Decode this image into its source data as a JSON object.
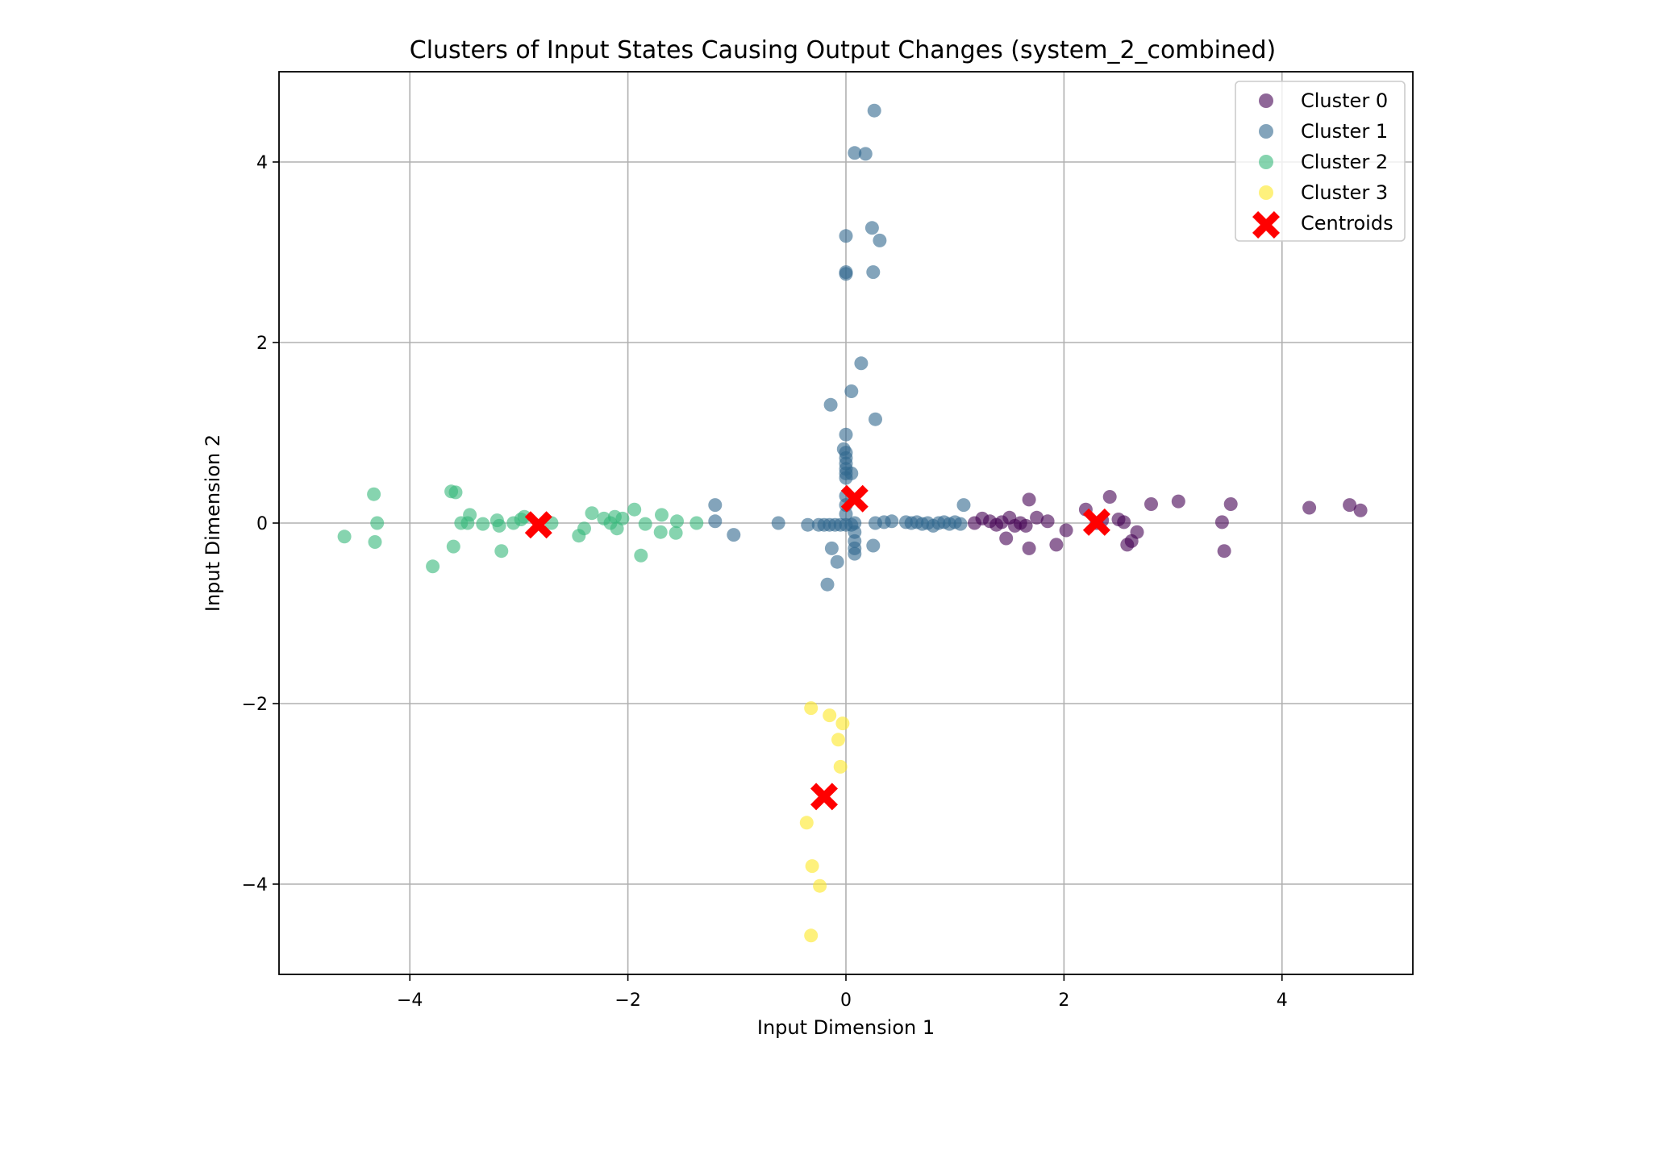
{
  "chart_data": {
    "type": "scatter",
    "title": "Clusters of Input States Causing Output Changes (system_2_combined)",
    "xlabel": "Input Dimension 1",
    "ylabel": "Input Dimension 2",
    "xlim": [
      -5.2,
      5.2
    ],
    "ylim": [
      -5.0,
      5.0
    ],
    "xticks": [
      -4,
      -2,
      0,
      2,
      4
    ],
    "yticks": [
      -4,
      -2,
      0,
      2,
      4
    ],
    "xtick_labels": [
      "−4",
      "−2",
      "0",
      "2",
      "4"
    ],
    "ytick_labels": [
      "−4",
      "−2",
      "0",
      "2",
      "4"
    ],
    "grid": true,
    "legend_position": "top-right",
    "series": [
      {
        "name": "Cluster 0",
        "color": "#440154",
        "marker": "circle",
        "points": [
          [
            1.18,
            0.0
          ],
          [
            1.25,
            0.05
          ],
          [
            1.32,
            0.02
          ],
          [
            1.38,
            -0.02
          ],
          [
            1.43,
            0.01
          ],
          [
            1.47,
            -0.17
          ],
          [
            1.5,
            0.06
          ],
          [
            1.55,
            -0.03
          ],
          [
            1.6,
            0.0
          ],
          [
            1.65,
            -0.03
          ],
          [
            1.68,
            0.26
          ],
          [
            1.68,
            -0.28
          ],
          [
            1.75,
            0.06
          ],
          [
            1.85,
            0.02
          ],
          [
            1.93,
            -0.24
          ],
          [
            2.02,
            -0.08
          ],
          [
            2.2,
            0.15
          ],
          [
            2.3,
            0.0
          ],
          [
            2.35,
            0.03
          ],
          [
            2.42,
            0.29
          ],
          [
            2.5,
            0.04
          ],
          [
            2.55,
            0.01
          ],
          [
            2.58,
            -0.24
          ],
          [
            2.62,
            -0.2
          ],
          [
            2.67,
            -0.1
          ],
          [
            2.8,
            0.21
          ],
          [
            3.05,
            0.24
          ],
          [
            3.45,
            0.01
          ],
          [
            3.47,
            -0.31
          ],
          [
            3.53,
            0.21
          ],
          [
            4.25,
            0.17
          ],
          [
            4.62,
            0.2
          ],
          [
            4.72,
            0.14
          ]
        ]
      },
      {
        "name": "Cluster 1",
        "color": "#31688e",
        "marker": "circle",
        "points": [
          [
            0.26,
            4.57
          ],
          [
            0.08,
            4.1
          ],
          [
            0.18,
            4.09
          ],
          [
            0.24,
            3.27
          ],
          [
            0.0,
            3.18
          ],
          [
            0.31,
            3.13
          ],
          [
            0.25,
            2.78
          ],
          [
            0.0,
            2.78
          ],
          [
            0.0,
            2.76
          ],
          [
            0.14,
            1.77
          ],
          [
            0.05,
            1.46
          ],
          [
            -0.14,
            1.31
          ],
          [
            0.27,
            1.15
          ],
          [
            0.0,
            0.98
          ],
          [
            -0.02,
            0.82
          ],
          [
            0.0,
            0.78
          ],
          [
            0.0,
            0.72
          ],
          [
            0.0,
            0.66
          ],
          [
            0.0,
            0.6
          ],
          [
            0.0,
            0.55
          ],
          [
            0.05,
            0.55
          ],
          [
            0.0,
            0.5
          ],
          [
            0.0,
            0.3
          ],
          [
            0.0,
            0.2
          ],
          [
            0.0,
            0.1
          ],
          [
            -1.2,
            0.2
          ],
          [
            -1.2,
            0.02
          ],
          [
            -1.03,
            -0.13
          ],
          [
            -0.62,
            0.0
          ],
          [
            -0.35,
            -0.02
          ],
          [
            -0.25,
            -0.02
          ],
          [
            -0.2,
            -0.02
          ],
          [
            -0.15,
            -0.02
          ],
          [
            -0.1,
            -0.02
          ],
          [
            -0.05,
            -0.02
          ],
          [
            0.0,
            -0.02
          ],
          [
            0.05,
            -0.02
          ],
          [
            0.08,
            0.0
          ],
          [
            0.08,
            -0.1
          ],
          [
            0.08,
            -0.2
          ],
          [
            0.08,
            -0.28
          ],
          [
            0.08,
            -0.34
          ],
          [
            -0.13,
            -0.28
          ],
          [
            -0.08,
            -0.43
          ],
          [
            -0.17,
            -0.68
          ],
          [
            0.25,
            -0.25
          ],
          [
            0.27,
            0.0
          ],
          [
            0.35,
            0.01
          ],
          [
            0.42,
            0.02
          ],
          [
            0.55,
            0.01
          ],
          [
            0.6,
            0.0
          ],
          [
            0.65,
            0.01
          ],
          [
            0.7,
            -0.01
          ],
          [
            0.75,
            0.0
          ],
          [
            0.8,
            -0.03
          ],
          [
            0.85,
            0.0
          ],
          [
            0.9,
            0.01
          ],
          [
            0.95,
            -0.01
          ],
          [
            1.0,
            0.01
          ],
          [
            1.05,
            -0.01
          ],
          [
            1.08,
            0.2
          ]
        ]
      },
      {
        "name": "Cluster 2",
        "color": "#35b779",
        "marker": "circle",
        "points": [
          [
            -4.6,
            -0.15
          ],
          [
            -4.33,
            0.32
          ],
          [
            -4.32,
            -0.21
          ],
          [
            -4.3,
            0.0
          ],
          [
            -3.79,
            -0.48
          ],
          [
            -3.62,
            0.35
          ],
          [
            -3.58,
            0.34
          ],
          [
            -3.6,
            -0.26
          ],
          [
            -3.53,
            0.0
          ],
          [
            -3.47,
            0.0
          ],
          [
            -3.45,
            0.09
          ],
          [
            -3.33,
            -0.01
          ],
          [
            -3.2,
            0.03
          ],
          [
            -3.18,
            -0.03
          ],
          [
            -3.16,
            -0.31
          ],
          [
            -3.05,
            0.0
          ],
          [
            -2.98,
            0.04
          ],
          [
            -2.95,
            0.07
          ],
          [
            -2.7,
            0.0
          ],
          [
            -2.45,
            -0.14
          ],
          [
            -2.4,
            -0.06
          ],
          [
            -2.33,
            0.11
          ],
          [
            -2.22,
            0.05
          ],
          [
            -2.16,
            0.0
          ],
          [
            -2.12,
            0.07
          ],
          [
            -2.1,
            -0.06
          ],
          [
            -2.05,
            0.05
          ],
          [
            -1.94,
            0.15
          ],
          [
            -1.88,
            -0.36
          ],
          [
            -1.84,
            -0.01
          ],
          [
            -1.7,
            -0.1
          ],
          [
            -1.69,
            0.09
          ],
          [
            -1.56,
            -0.11
          ],
          [
            -1.55,
            0.02
          ],
          [
            -1.37,
            0.0
          ]
        ]
      },
      {
        "name": "Cluster 3",
        "color": "#fde725",
        "marker": "circle",
        "points": [
          [
            -0.32,
            -2.05
          ],
          [
            -0.15,
            -2.13
          ],
          [
            -0.03,
            -2.22
          ],
          [
            -0.07,
            -2.4
          ],
          [
            -0.05,
            -2.7
          ],
          [
            -0.36,
            -3.32
          ],
          [
            -0.31,
            -3.8
          ],
          [
            -0.24,
            -4.02
          ],
          [
            -0.32,
            -4.57
          ]
        ]
      }
    ],
    "centroids": {
      "name": "Centroids",
      "color": "#ff0000",
      "marker": "x",
      "points": [
        [
          2.3,
          0.01
        ],
        [
          -2.82,
          -0.02
        ],
        [
          0.08,
          0.27
        ],
        [
          -0.2,
          -3.03
        ]
      ]
    }
  }
}
